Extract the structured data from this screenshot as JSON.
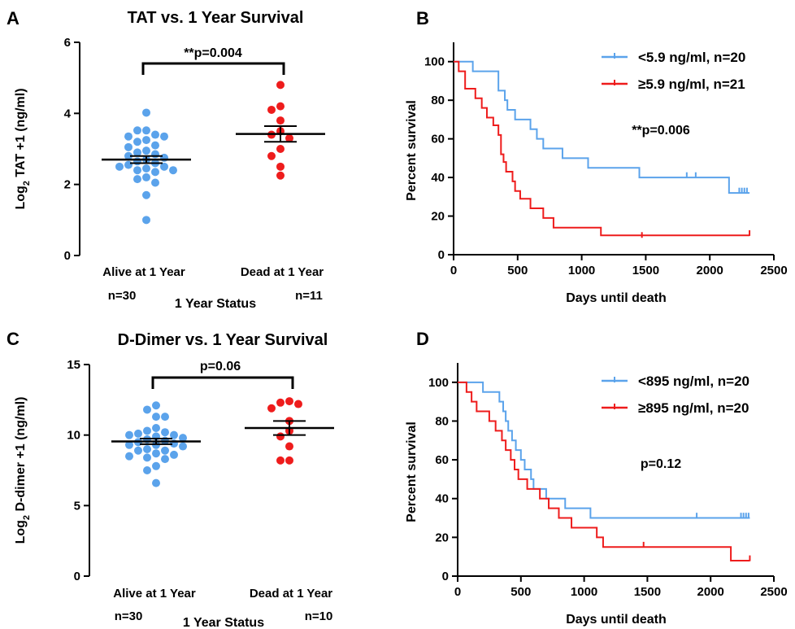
{
  "colors": {
    "alive": "#5ba3eb",
    "dead": "#ee1c1c",
    "low": "#5ba3eb",
    "high": "#ee1c1c",
    "axis": "#000000"
  },
  "chart_data": [
    {
      "panel": "A",
      "type": "scatter",
      "title": "TAT vs. 1 Year Survival",
      "xlabel": "1 Year Status",
      "ylabel_main": "Log",
      "ylabel_sub": "2",
      "ylabel_rest": " TAT +1 (ng/ml)",
      "ylim": [
        0,
        6
      ],
      "yticks": [
        0,
        2,
        4,
        6
      ],
      "categories": [
        "Alive at 1 Year",
        "Dead at 1 Year"
      ],
      "counts": [
        "n=30",
        "n=11"
      ],
      "annotation": "**p=0.004",
      "groups": [
        {
          "name": "Alive at 1 Year",
          "values": [
            4.02,
            3.52,
            3.52,
            3.4,
            3.35,
            3.35,
            3.25,
            3.2,
            3.1,
            3.05,
            2.95,
            2.9,
            2.85,
            2.8,
            2.75,
            2.7,
            2.65,
            2.6,
            2.55,
            2.5,
            2.5,
            2.45,
            2.4,
            2.4,
            2.35,
            2.2,
            2.15,
            2.05,
            1.7,
            1.0
          ],
          "mean": 2.7,
          "sem": 0.1
        },
        {
          "name": "Dead at 1 Year",
          "values": [
            4.8,
            4.2,
            4.1,
            3.8,
            3.5,
            3.4,
            3.3,
            3.0,
            2.8,
            2.5,
            2.25
          ],
          "mean": 3.42,
          "sem": 0.22
        }
      ]
    },
    {
      "panel": "B",
      "type": "line",
      "xlabel": "Days until death",
      "ylabel": "Percent survival",
      "xlim": [
        0,
        2500
      ],
      "ylim": [
        0,
        110
      ],
      "xticks": [
        0,
        500,
        1000,
        1500,
        2000,
        2500
      ],
      "yticks": [
        0,
        20,
        40,
        60,
        80,
        100
      ],
      "annotation": "**p=0.006",
      "series": [
        {
          "name": "<5.9 ng/ml, n=20",
          "color_key": "low",
          "steps": [
            [
              0,
              100
            ],
            [
              150,
              95
            ],
            [
              350,
              85
            ],
            [
              400,
              80
            ],
            [
              420,
              75
            ],
            [
              480,
              70
            ],
            [
              600,
              65
            ],
            [
              650,
              60
            ],
            [
              700,
              55
            ],
            [
              850,
              50
            ],
            [
              1050,
              45
            ],
            [
              1450,
              40
            ],
            [
              2150,
              32
            ],
            [
              2310,
              32
            ]
          ],
          "censored": [
            [
              1820,
              41
            ],
            [
              1890,
              41
            ],
            [
              2230,
              33
            ],
            [
              2250,
              33
            ],
            [
              2270,
              33
            ],
            [
              2290,
              33
            ]
          ]
        },
        {
          "name": "≥5.9 ng/ml, n=21",
          "color_key": "high",
          "steps": [
            [
              0,
              100
            ],
            [
              40,
              95
            ],
            [
              90,
              86
            ],
            [
              170,
              81
            ],
            [
              220,
              76
            ],
            [
              260,
              71
            ],
            [
              310,
              67
            ],
            [
              350,
              62
            ],
            [
              370,
              52
            ],
            [
              390,
              48
            ],
            [
              410,
              43
            ],
            [
              460,
              38
            ],
            [
              480,
              33
            ],
            [
              520,
              29
            ],
            [
              600,
              24
            ],
            [
              700,
              19
            ],
            [
              780,
              14
            ],
            [
              1150,
              10
            ],
            [
              2310,
              10
            ]
          ],
          "censored": [
            [
              1470,
              10
            ],
            [
              2310,
              11
            ]
          ]
        }
      ]
    },
    {
      "panel": "C",
      "type": "scatter",
      "title": "D-Dimer vs. 1 Year Survival",
      "xlabel": "1 Year Status",
      "ylabel_main": "Log",
      "ylabel_sub": "2",
      "ylabel_rest": " D-dimer +1 (ng/ml)",
      "ylim": [
        0,
        15
      ],
      "yticks": [
        0,
        5,
        10,
        15
      ],
      "categories": [
        "Alive at 1 Year",
        "Dead at 1 Year"
      ],
      "counts": [
        "n=30",
        "n=10"
      ],
      "annotation": "p=0.06",
      "groups": [
        {
          "name": "Alive at 1 Year",
          "values": [
            12.1,
            11.8,
            11.3,
            11.3,
            10.5,
            10.3,
            10.2,
            10.1,
            10.0,
            10.0,
            9.9,
            9.8,
            9.7,
            9.6,
            9.5,
            9.4,
            9.3,
            9.3,
            9.2,
            9.0,
            8.9,
            8.9,
            8.7,
            8.6,
            8.5,
            8.4,
            8.3,
            7.8,
            7.5,
            6.6
          ],
          "mean": 9.55,
          "sem": 0.2
        },
        {
          "name": "Dead at 1 Year",
          "values": [
            12.4,
            12.3,
            12.2,
            11.9,
            11.0,
            10.3,
            9.9,
            9.2,
            8.2,
            8.2
          ],
          "mean": 10.5,
          "sem": 0.5
        }
      ]
    },
    {
      "panel": "D",
      "type": "line",
      "xlabel": "Days until death",
      "ylabel": "Percent survival",
      "xlim": [
        0,
        2500
      ],
      "ylim": [
        0,
        110
      ],
      "xticks": [
        0,
        500,
        1000,
        1500,
        2000,
        2500
      ],
      "yticks": [
        0,
        20,
        40,
        60,
        80,
        100
      ],
      "annotation": "p=0.12",
      "series": [
        {
          "name": "<895 ng/ml, n=20",
          "color_key": "low",
          "steps": [
            [
              0,
              100
            ],
            [
              200,
              95
            ],
            [
              330,
              90
            ],
            [
              360,
              85
            ],
            [
              380,
              80
            ],
            [
              400,
              75
            ],
            [
              430,
              70
            ],
            [
              460,
              65
            ],
            [
              500,
              60
            ],
            [
              530,
              55
            ],
            [
              580,
              50
            ],
            [
              600,
              45
            ],
            [
              700,
              40
            ],
            [
              850,
              35
            ],
            [
              1050,
              30
            ],
            [
              1460,
              30
            ],
            [
              2310,
              30
            ]
          ],
          "censored": [
            [
              1890,
              31
            ],
            [
              2240,
              31
            ],
            [
              2260,
              31
            ],
            [
              2280,
              31
            ],
            [
              2300,
              31
            ]
          ]
        },
        {
          "name": "≥895 ng/ml, n=20",
          "color_key": "high",
          "steps": [
            [
              0,
              100
            ],
            [
              70,
              95
            ],
            [
              110,
              90
            ],
            [
              150,
              85
            ],
            [
              250,
              80
            ],
            [
              300,
              75
            ],
            [
              350,
              70
            ],
            [
              380,
              65
            ],
            [
              420,
              60
            ],
            [
              450,
              55
            ],
            [
              480,
              50
            ],
            [
              550,
              45
            ],
            [
              650,
              40
            ],
            [
              720,
              35
            ],
            [
              800,
              30
            ],
            [
              900,
              25
            ],
            [
              1100,
              20
            ],
            [
              1150,
              15
            ],
            [
              2140,
              15
            ],
            [
              2160,
              8
            ],
            [
              2310,
              8
            ]
          ],
          "censored": [
            [
              1470,
              16
            ],
            [
              2310,
              9
            ]
          ]
        }
      ]
    }
  ]
}
